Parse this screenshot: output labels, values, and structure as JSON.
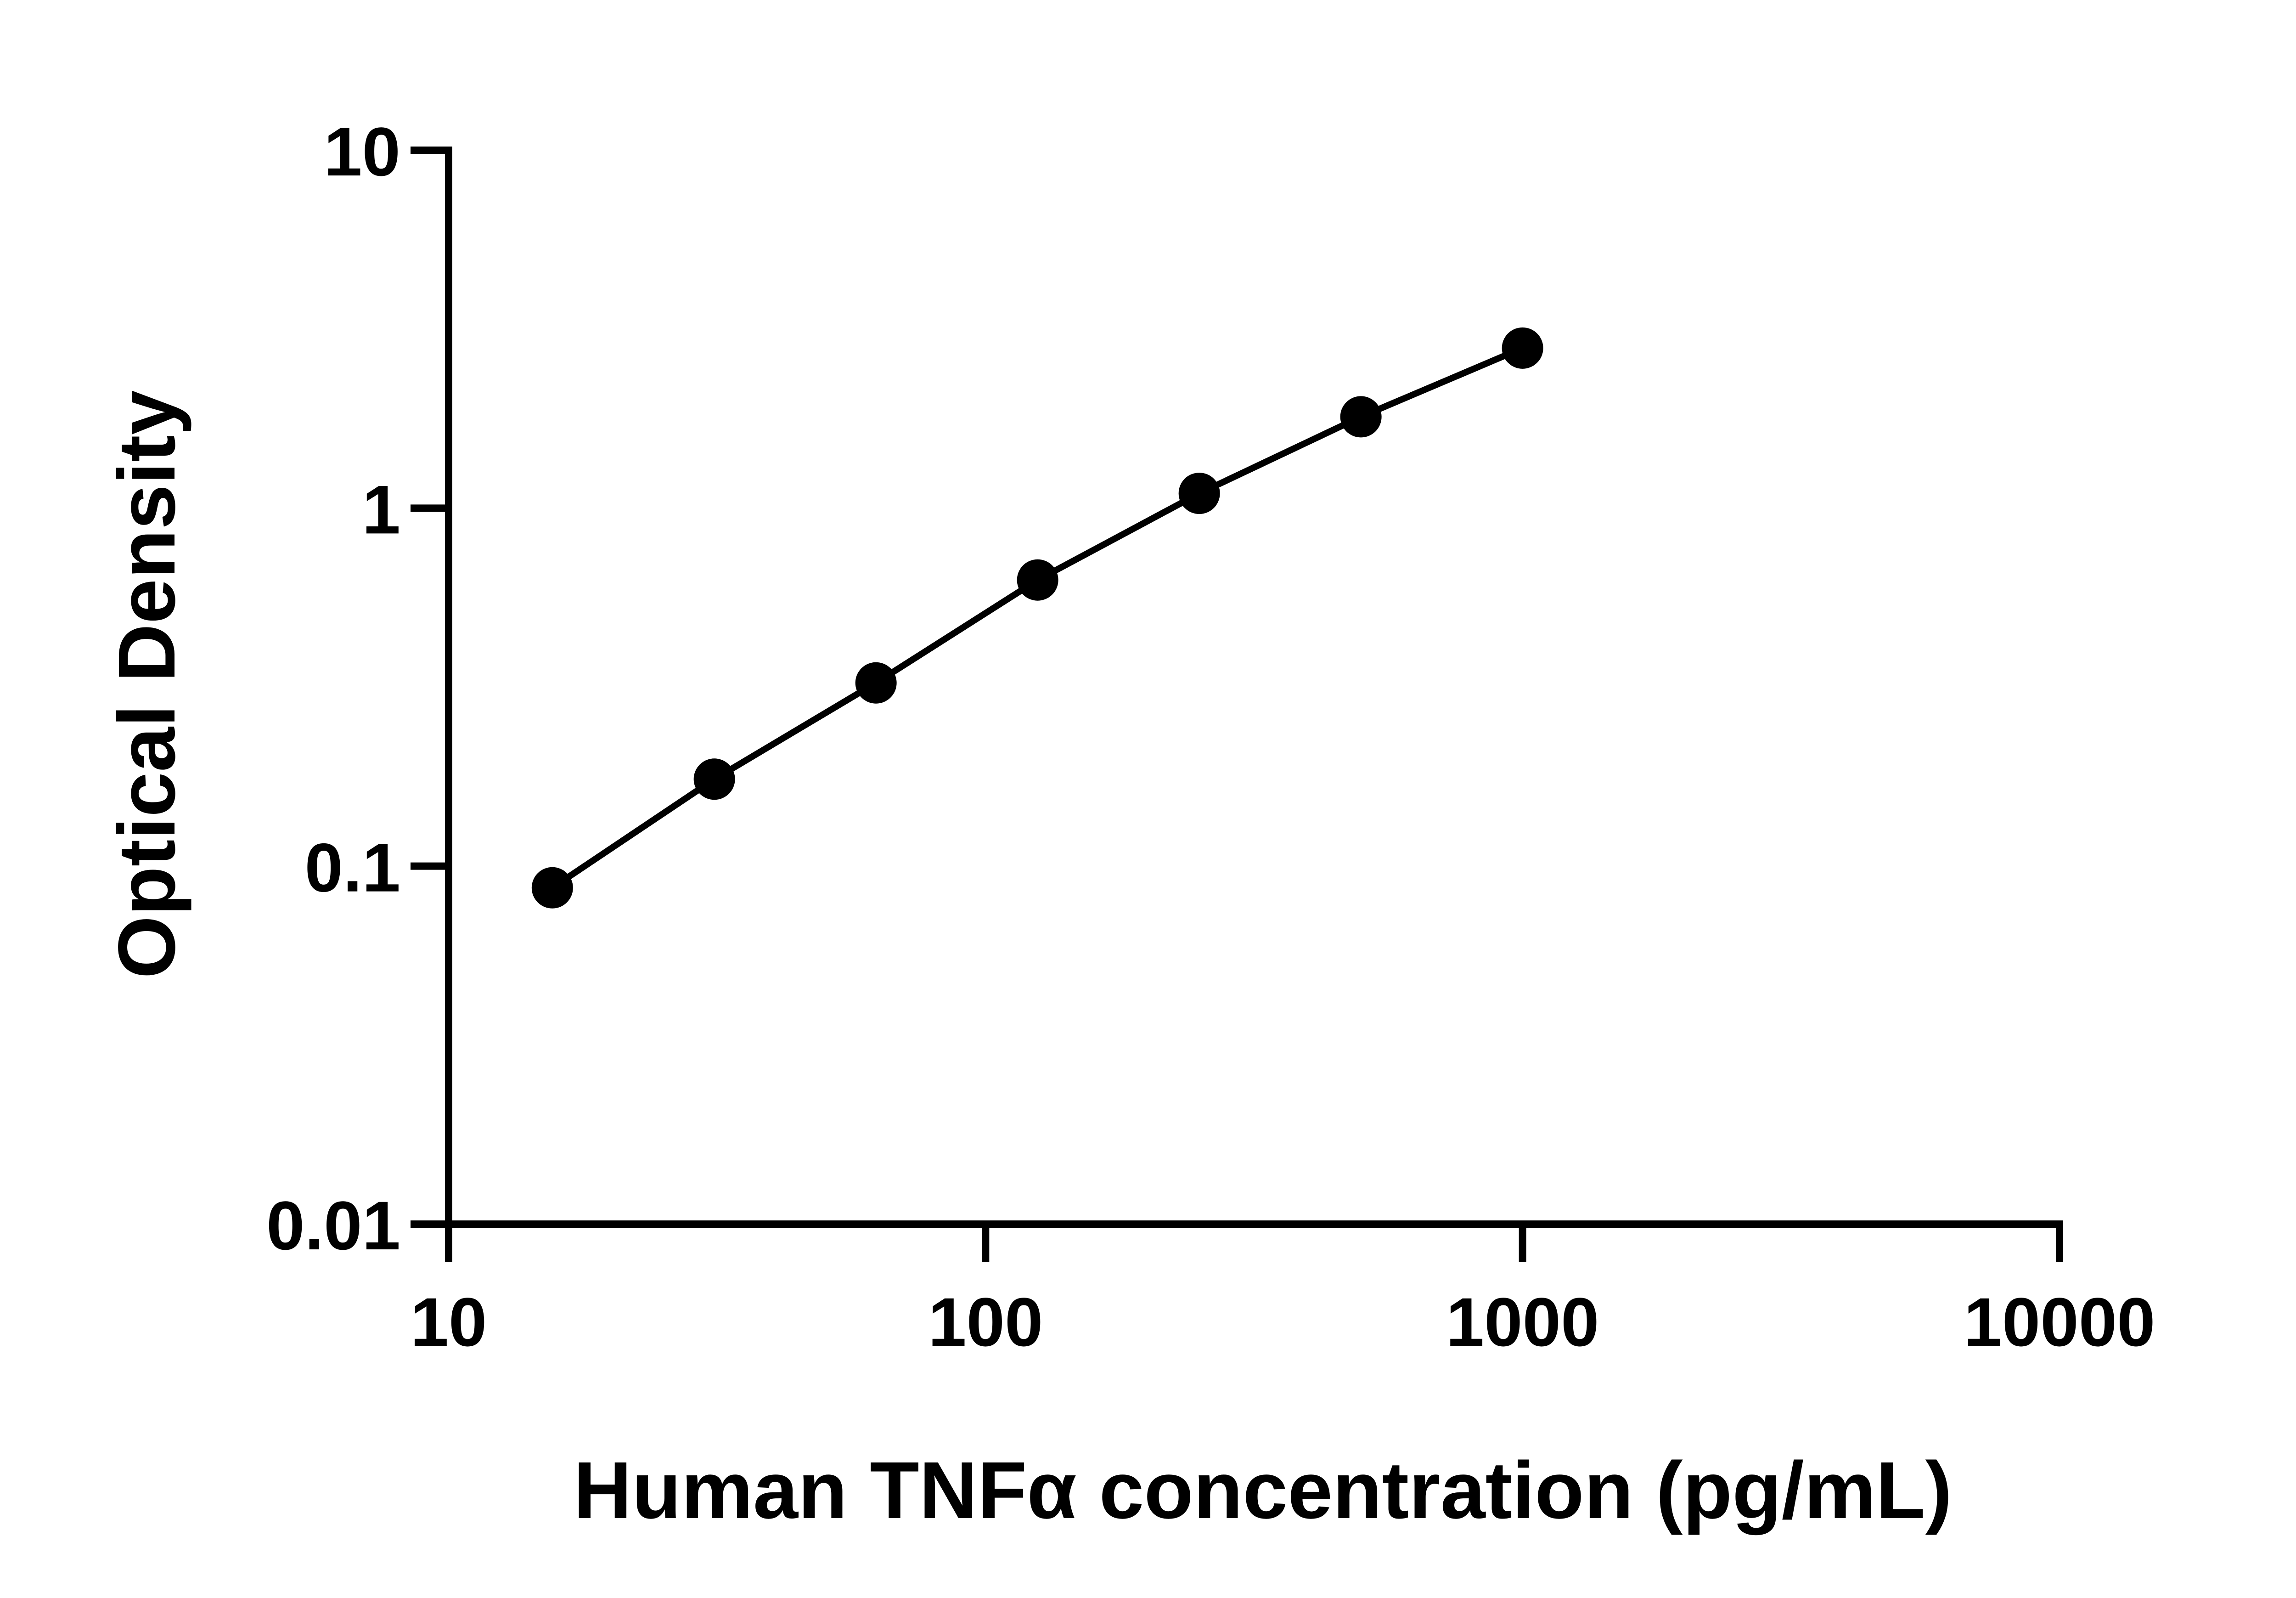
{
  "chart_data": {
    "type": "scatter",
    "title": "",
    "xlabel": "Human TNFα concentration (pg/mL)",
    "ylabel": "Optical Density",
    "x_scale": "log",
    "y_scale": "log",
    "xlim": [
      10,
      10000
    ],
    "ylim": [
      0.01,
      10
    ],
    "x_ticks": [
      10,
      100,
      1000,
      10000
    ],
    "x_tick_labels": [
      "10",
      "100",
      "1000",
      "10000"
    ],
    "y_ticks": [
      0.01,
      0.1,
      1,
      10
    ],
    "y_tick_labels": [
      "0.01",
      "0.1",
      "1",
      "10"
    ],
    "grid": false,
    "legend": "none",
    "series": [
      {
        "x": [
          15.6,
          31.25,
          62.5,
          125,
          250,
          500,
          1000
        ],
        "y": [
          0.087,
          0.175,
          0.325,
          0.63,
          1.1,
          1.8,
          2.8
        ],
        "marker": "filled-circle",
        "fit_line": true,
        "color": "#000000"
      }
    ]
  }
}
